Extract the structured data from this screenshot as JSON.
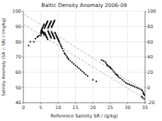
{
  "chart_data": {
    "type": "scatter",
    "title": "Baltic Density Anomaly 2006-09",
    "xlabel": "Reference Salinity SR / (g/kg)",
    "ylabel": "Salinity Anomaly (SA − SR) / (mg/kg)",
    "xlim": [
      0,
      35
    ],
    "xticks": [
      0,
      5,
      10,
      15,
      20,
      25,
      30,
      35
    ],
    "ylim": [
      40,
      100
    ],
    "yticks": [
      40,
      50,
      60,
      70,
      80,
      90,
      100
    ],
    "y2lim": [
      -20,
      100
    ],
    "y2ticks": [
      -20,
      0,
      20,
      40,
      60,
      80,
      100
    ],
    "grid": true,
    "series": [
      {
        "type": "scatter",
        "axis": "y2",
        "color": "#111111",
        "marker": "square",
        "x": [
          1.5,
          2.0,
          3.0,
          3.5,
          4.0,
          4.2,
          4.5,
          5.0,
          5.0,
          5.1,
          5.1,
          5.2,
          5.2,
          5.3,
          5.3,
          5.4,
          5.4,
          5.5,
          5.5,
          5.6,
          5.6,
          5.7,
          5.7,
          5.8,
          5.8,
          5.9,
          5.9,
          6.0,
          6.0,
          6.1,
          6.1,
          6.2,
          6.2,
          6.3,
          6.3,
          6.4,
          6.4,
          6.5,
          6.5,
          6.6,
          6.6,
          6.7,
          6.7,
          6.8,
          6.8,
          6.9,
          6.9,
          7.0,
          7.0,
          7.1,
          7.1,
          7.2,
          7.2,
          7.3,
          7.3,
          7.4,
          7.4,
          7.5,
          7.5,
          7.6,
          7.6,
          7.7,
          7.7,
          7.8,
          7.8,
          7.9,
          7.9,
          8.0,
          8.0,
          8.1,
          8.1,
          8.2,
          8.2,
          8.3,
          8.3,
          8.4,
          8.4,
          8.5,
          8.5,
          8.6,
          8.6,
          8.7,
          8.7,
          8.8,
          8.8,
          8.9,
          8.9,
          9.0,
          9.0,
          9.1,
          9.2,
          9.3,
          9.4,
          9.5,
          9.6,
          9.7,
          9.8,
          9.9,
          10.0,
          10.1,
          10.2,
          10.3,
          10.5,
          10.7,
          10.9,
          11.0,
          11.2,
          11.5,
          11.8,
          12.0,
          12.3,
          12.6,
          12.9,
          13.0,
          13.5,
          14.0,
          14.5,
          15.0,
          15.5,
          16.0,
          16.5,
          17.0,
          17.5,
          18.0,
          18.5,
          20.0,
          21.0,
          22.5,
          23.0,
          23.5,
          23.8,
          24.0,
          24.2,
          24.5,
          24.8,
          25.0,
          25.2,
          25.5,
          25.8,
          26.0,
          26.2,
          26.5,
          26.8,
          27.0,
          27.2,
          27.5,
          28.0,
          28.5,
          29.0,
          29.5,
          30.0,
          30.5,
          31.0,
          31.5,
          32.0,
          32.5,
          33.0,
          33.5,
          34.0,
          34.2,
          34.5,
          34.5,
          34.7,
          34.8,
          34.0,
          34.2,
          34.5,
          34.8
        ],
        "values": [
          55,
          60,
          60,
          64,
          66,
          67,
          68,
          68,
          72,
          70,
          74,
          71,
          75,
          72,
          76,
          73,
          77,
          74,
          78,
          73,
          79,
          72,
          80,
          71,
          81,
          70,
          82,
          69,
          83,
          72,
          78,
          71,
          79,
          70,
          80,
          69,
          81,
          68,
          82,
          67,
          83,
          66,
          84,
          65,
          85,
          64,
          86,
          63,
          87,
          74,
          78,
          73,
          79,
          72,
          80,
          71,
          81,
          70,
          82,
          69,
          83,
          68,
          84,
          67,
          85,
          66,
          86,
          65,
          87,
          73,
          79,
          72,
          80,
          71,
          81,
          70,
          82,
          69,
          83,
          68,
          84,
          67,
          85,
          66,
          86,
          65,
          87,
          64,
          88,
          72,
          71,
          70,
          69,
          68,
          67,
          66,
          65,
          64,
          63,
          62,
          61,
          60,
          58,
          56,
          54,
          53,
          51,
          48,
          45,
          44,
          42,
          40,
          38,
          37,
          35,
          33,
          31,
          29,
          27,
          25,
          23,
          21,
          19,
          17,
          15,
          10,
          8,
          36,
          35,
          34,
          32,
          30,
          29,
          28,
          27,
          26,
          25,
          24,
          22,
          21,
          20,
          18,
          17,
          16,
          15,
          13,
          12,
          10,
          8,
          6,
          5,
          4,
          3,
          2,
          1,
          0,
          -1,
          -2,
          -3,
          -4,
          -6,
          -8,
          -9,
          -10,
          -12,
          -13,
          -14,
          -15
        ]
      },
      {
        "type": "line",
        "axis": "y2",
        "color": "#bbbbbb",
        "line_style": "dashed",
        "x": [
          0,
          35
        ],
        "values": [
          97,
          -5
        ]
      },
      {
        "type": "line",
        "axis": "y2",
        "color": "#bbbbbb",
        "line_style": "dashed",
        "x": [
          0,
          35
        ],
        "values": [
          83,
          -15
        ]
      }
    ]
  }
}
